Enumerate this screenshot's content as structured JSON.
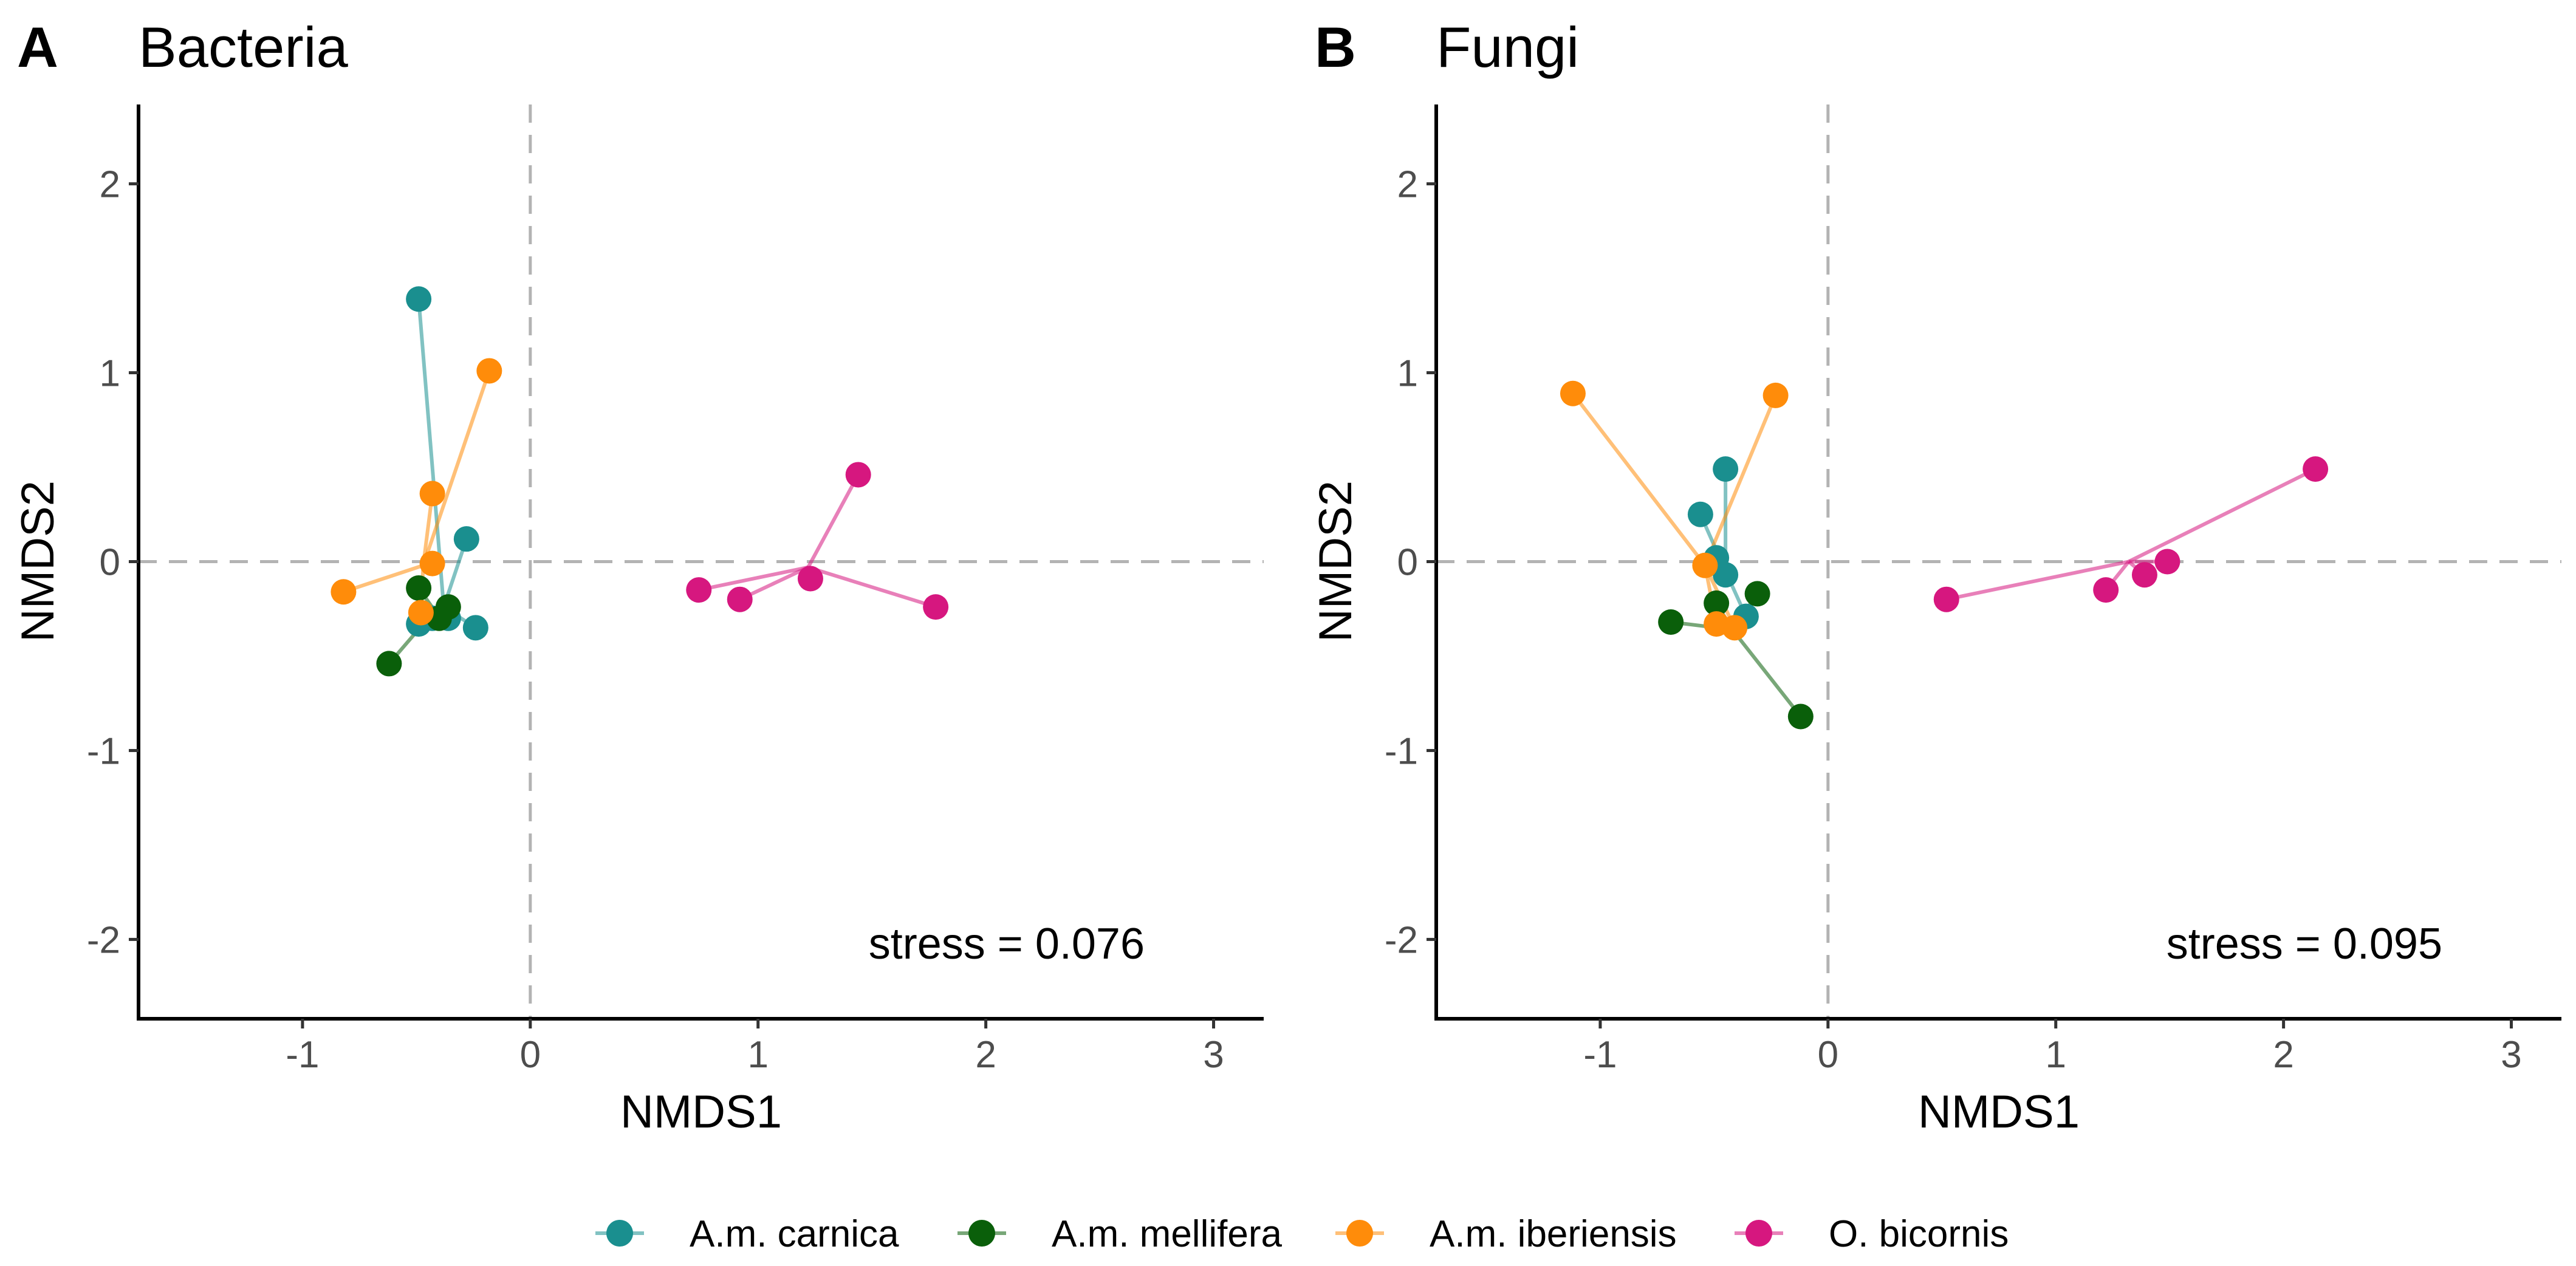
{
  "groups": [
    {
      "name": "A.m. carnica",
      "color": "#1a8f8f"
    },
    {
      "name": "A.m. mellifera",
      "color": "#0a5f0a"
    },
    {
      "name": "A.m. iberiensis",
      "color": "#ff8c0a"
    },
    {
      "name": "O. bicornis",
      "color": "#d6177f"
    }
  ],
  "chart_data": [
    {
      "type": "scatter",
      "panel": "A",
      "title": "Bacteria",
      "xlabel": "NMDS1",
      "ylabel": "NMDS2",
      "xlim": [
        -1.72,
        3.22
      ],
      "ylim": [
        -2.42,
        2.42
      ],
      "xticks": [
        -1,
        0,
        1,
        2,
        3
      ],
      "yticks": [
        -2,
        -1,
        0,
        1,
        2
      ],
      "stress_label": "stress = 0.076",
      "series": [
        {
          "name": "A.m. carnica",
          "centroid": [
            -0.38,
            -0.24
          ],
          "points": [
            [
              -0.49,
              1.39
            ],
            [
              -0.28,
              0.12
            ],
            [
              -0.24,
              -0.35
            ],
            [
              -0.36,
              -0.3
            ],
            [
              -0.49,
              -0.33
            ],
            [
              -0.43,
              -0.3
            ]
          ]
        },
        {
          "name": "A.m. mellifera",
          "centroid": [
            -0.42,
            -0.26
          ],
          "points": [
            [
              -0.49,
              -0.14
            ],
            [
              -0.62,
              -0.54
            ],
            [
              -0.36,
              -0.24
            ],
            [
              -0.4,
              -0.3
            ]
          ]
        },
        {
          "name": "A.m. iberiensis",
          "centroid": [
            -0.47,
            -0.02
          ],
          "points": [
            [
              -0.18,
              1.01
            ],
            [
              -0.43,
              0.36
            ],
            [
              -0.82,
              -0.16
            ],
            [
              -0.43,
              -0.01
            ],
            [
              -0.48,
              -0.27
            ]
          ]
        },
        {
          "name": "O. bicornis",
          "centroid": [
            1.22,
            -0.03
          ],
          "points": [
            [
              1.44,
              0.46
            ],
            [
              0.74,
              -0.15
            ],
            [
              0.92,
              -0.2
            ],
            [
              1.23,
              -0.09
            ],
            [
              1.78,
              -0.24
            ]
          ]
        }
      ]
    },
    {
      "type": "scatter",
      "panel": "B",
      "title": "Fungi",
      "xlabel": "NMDS1",
      "ylabel": "NMDS2",
      "xlim": [
        -1.72,
        3.22
      ],
      "ylim": [
        -2.42,
        2.42
      ],
      "xticks": [
        -1,
        0,
        1,
        2,
        3
      ],
      "yticks": [
        -2,
        -1,
        0,
        1,
        2
      ],
      "stress_label": "stress = 0.095",
      "series": [
        {
          "name": "A.m. carnica",
          "centroid": [
            -0.45,
            -0.05
          ],
          "points": [
            [
              -0.45,
              0.49
            ],
            [
              -0.56,
              0.25
            ],
            [
              -0.49,
              0.02
            ],
            [
              -0.45,
              -0.07
            ],
            [
              -0.36,
              -0.29
            ]
          ]
        },
        {
          "name": "A.m. mellifera",
          "centroid": [
            -0.42,
            -0.36
          ],
          "points": [
            [
              -0.69,
              -0.32
            ],
            [
              -0.49,
              -0.22
            ],
            [
              -0.31,
              -0.17
            ],
            [
              -0.12,
              -0.82
            ]
          ]
        },
        {
          "name": "A.m. iberiensis",
          "centroid": [
            -0.54,
            -0.02
          ],
          "points": [
            [
              -1.12,
              0.89
            ],
            [
              -0.23,
              0.88
            ],
            [
              -0.54,
              -0.02
            ],
            [
              -0.49,
              -0.33
            ],
            [
              -0.41,
              -0.35
            ]
          ]
        },
        {
          "name": "O. bicornis",
          "centroid": [
            1.32,
            0.0
          ],
          "points": [
            [
              2.14,
              0.49
            ],
            [
              0.52,
              -0.2
            ],
            [
              1.22,
              -0.15
            ],
            [
              1.39,
              -0.07
            ],
            [
              1.49,
              0.0
            ]
          ]
        }
      ]
    }
  ]
}
